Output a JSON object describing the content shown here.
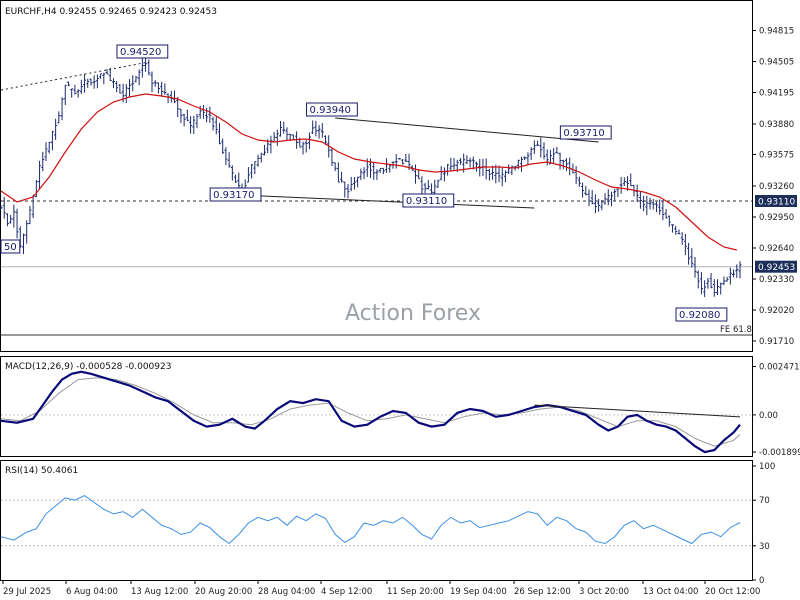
{
  "chart_data": [
    {
      "type": "candlestick",
      "title": "EURCHF,H4 0.92455 0.92465 0.92423 0.92453",
      "symbol": "EURCHF",
      "timeframe": "H4",
      "ohlc_header": {
        "open": 0.92455,
        "high": 0.92465,
        "low": 0.92423,
        "close": 0.92453
      },
      "price_axis_ticks": [
        "0.94815",
        "0.94505",
        "0.94195",
        "0.93880",
        "0.93575",
        "0.93260",
        "0.92950",
        "0.92640",
        "0.92330",
        "0.92020",
        "0.91710"
      ],
      "x_tick_labels": [
        "29 Jul 2025",
        "6 Aug 04:00",
        "13 Aug 12:00",
        "20 Aug 20:00",
        "28 Aug 04:00",
        "4 Sep 12:00",
        "11 Sep 20:00",
        "19 Sep 04:00",
        "26 Sep 12:00",
        "3 Oct 20:00",
        "13 Oct 04:00",
        "20 Oct 12:00"
      ],
      "ylim": [
        0.9164,
        0.9492
      ],
      "bar_color": "#1a2a6c",
      "ma_color": "#d01010",
      "price_path": [
        [
          0,
          0.9305
        ],
        [
          2,
          0.929
        ],
        [
          4,
          0.9298
        ],
        [
          6,
          0.9265
        ],
        [
          9,
          0.93
        ],
        [
          12,
          0.9345
        ],
        [
          15,
          0.937
        ],
        [
          18,
          0.9395
        ],
        [
          20,
          0.9428
        ],
        [
          23,
          0.9418
        ],
        [
          26,
          0.943
        ],
        [
          29,
          0.9432
        ],
        [
          32,
          0.944
        ],
        [
          35,
          0.9428
        ],
        [
          38,
          0.9418
        ],
        [
          41,
          0.943
        ],
        [
          43,
          0.9442
        ],
        [
          45,
          0.9448
        ],
        [
          47,
          0.943
        ],
        [
          50,
          0.942
        ],
        [
          53,
          0.9415
        ],
        [
          56,
          0.9398
        ],
        [
          59,
          0.9385
        ],
        [
          62,
          0.94
        ],
        [
          65,
          0.9395
        ],
        [
          67,
          0.938
        ],
        [
          70,
          0.9352
        ],
        [
          73,
          0.933
        ],
        [
          75,
          0.932
        ],
        [
          78,
          0.9345
        ],
        [
          81,
          0.9358
        ],
        [
          84,
          0.937
        ],
        [
          87,
          0.9382
        ],
        [
          90,
          0.9378
        ],
        [
          93,
          0.9365
        ],
        [
          95,
          0.937
        ],
        [
          97,
          0.9385
        ],
        [
          100,
          0.9378
        ],
        [
          102,
          0.936
        ],
        [
          105,
          0.9332
        ],
        [
          108,
          0.9322
        ],
        [
          111,
          0.9335
        ],
        [
          114,
          0.9345
        ],
        [
          117,
          0.934
        ],
        [
          120,
          0.9345
        ],
        [
          123,
          0.9352
        ],
        [
          126,
          0.935
        ],
        [
          129,
          0.9338
        ],
        [
          131,
          0.9325
        ],
        [
          134,
          0.9322
        ],
        [
          137,
          0.9338
        ],
        [
          140,
          0.9348
        ],
        [
          143,
          0.935
        ],
        [
          146,
          0.9352
        ],
        [
          149,
          0.9345
        ],
        [
          152,
          0.934
        ],
        [
          155,
          0.9335
        ],
        [
          158,
          0.9342
        ],
        [
          161,
          0.935
        ],
        [
          164,
          0.9358
        ],
        [
          167,
          0.9368
        ],
        [
          170,
          0.935
        ],
        [
          172,
          0.936
        ],
        [
          175,
          0.935
        ],
        [
          178,
          0.934
        ],
        [
          181,
          0.932
        ],
        [
          184,
          0.931
        ],
        [
          186,
          0.9305
        ],
        [
          189,
          0.9315
        ],
        [
          192,
          0.9325
        ],
        [
          195,
          0.933
        ],
        [
          197,
          0.932
        ],
        [
          200,
          0.9305
        ],
        [
          203,
          0.931
        ],
        [
          206,
          0.9298
        ],
        [
          209,
          0.9285
        ],
        [
          212,
          0.9272
        ],
        [
          214,
          0.9255
        ],
        [
          216,
          0.924
        ],
        [
          218,
          0.9222
        ],
        [
          220,
          0.9232
        ],
        [
          222,
          0.9218
        ],
        [
          224,
          0.9228
        ],
        [
          226,
          0.9235
        ],
        [
          228,
          0.924
        ],
        [
          230,
          0.9245
        ]
      ],
      "ma_path": [
        [
          0,
          0.9321
        ],
        [
          5,
          0.931
        ],
        [
          10,
          0.9315
        ],
        [
          15,
          0.9335
        ],
        [
          20,
          0.936
        ],
        [
          25,
          0.9383
        ],
        [
          30,
          0.94
        ],
        [
          35,
          0.941
        ],
        [
          40,
          0.9415
        ],
        [
          45,
          0.9418
        ],
        [
          50,
          0.9416
        ],
        [
          55,
          0.9413
        ],
        [
          60,
          0.9406
        ],
        [
          65,
          0.94
        ],
        [
          70,
          0.939
        ],
        [
          75,
          0.9378
        ],
        [
          80,
          0.9372
        ],
        [
          85,
          0.937
        ],
        [
          90,
          0.9372
        ],
        [
          95,
          0.9373
        ],
        [
          100,
          0.937
        ],
        [
          105,
          0.936
        ],
        [
          110,
          0.9353
        ],
        [
          115,
          0.935
        ],
        [
          120,
          0.9348
        ],
        [
          125,
          0.9346
        ],
        [
          130,
          0.9342
        ],
        [
          135,
          0.934
        ],
        [
          140,
          0.9341
        ],
        [
          145,
          0.9343
        ],
        [
          150,
          0.9345
        ],
        [
          155,
          0.9345
        ],
        [
          160,
          0.9344
        ],
        [
          165,
          0.9348
        ],
        [
          170,
          0.935
        ],
        [
          175,
          0.9346
        ],
        [
          180,
          0.934
        ],
        [
          185,
          0.9332
        ],
        [
          190,
          0.9325
        ],
        [
          195,
          0.9323
        ],
        [
          200,
          0.932
        ],
        [
          205,
          0.9315
        ],
        [
          210,
          0.9305
        ],
        [
          215,
          0.929
        ],
        [
          220,
          0.9275
        ],
        [
          225,
          0.9265
        ],
        [
          229,
          0.9262
        ]
      ],
      "annotations": [
        {
          "label": "0.94520",
          "x": 44,
          "y": 0.9452
        },
        {
          "label": "0.93940",
          "x": 103,
          "y": 0.9394
        },
        {
          "label": "0.93710",
          "x": 182,
          "y": 0.9371
        },
        {
          "label": "0.93170",
          "x": 73,
          "y": 0.9317
        },
        {
          "label": "0.93110",
          "x": 133,
          "y": 0.9311
        },
        {
          "label": "0.92080",
          "x": 218,
          "y": 0.9208
        },
        {
          "label": "50",
          "x": 0,
          "y": 0.9265
        }
      ],
      "horizontal_lines": [
        {
          "label": "0.93110",
          "y": 0.9311,
          "style": "dashed"
        },
        {
          "label": "0.92453",
          "y": 0.92453,
          "style": "solid"
        },
        {
          "label": "FE 61.8",
          "y": 0.9177,
          "style": "solid"
        }
      ],
      "trend_lines": [
        {
          "from": [
            0,
            0.9422
          ],
          "to": [
            46,
            0.945
          ],
          "style": "dotted"
        },
        {
          "from": [
            104,
            0.9394
          ],
          "to": [
            186,
            0.937
          ],
          "style": "solid"
        },
        {
          "from": [
            74,
            0.9317
          ],
          "to": [
            166,
            0.9304
          ],
          "style": "solid"
        }
      ],
      "watermark": "Action Forex"
    },
    {
      "type": "line",
      "title": "MACD(12,26,9) -0.000528 -0.000923",
      "params": "12,26,9",
      "main": -0.000528,
      "signal": -0.000923,
      "y_tick_labels": [
        "0.002471",
        "0.00",
        "-0.001899"
      ],
      "ylim": [
        -0.0021,
        0.0027
      ],
      "main_color": "#0a0a7a",
      "signal_color": "#9a9a9a",
      "main_path": [
        [
          0,
          -0.0003
        ],
        [
          5,
          -0.0004
        ],
        [
          10,
          -0.0002
        ],
        [
          13,
          0.0005
        ],
        [
          16,
          0.0012
        ],
        [
          19,
          0.0018
        ],
        [
          22,
          0.0021
        ],
        [
          25,
          0.0022
        ],
        [
          28,
          0.0021
        ],
        [
          32,
          0.0019
        ],
        [
          36,
          0.0017
        ],
        [
          40,
          0.0015
        ],
        [
          44,
          0.0012
        ],
        [
          48,
          0.0009
        ],
        [
          52,
          0.0007
        ],
        [
          56,
          0.0002
        ],
        [
          60,
          -0.0003
        ],
        [
          64,
          -0.0006
        ],
        [
          68,
          -0.0005
        ],
        [
          72,
          -0.0002
        ],
        [
          76,
          -0.0006
        ],
        [
          79,
          -0.0007
        ],
        [
          82,
          -0.0003
        ],
        [
          86,
          0.0003
        ],
        [
          90,
          0.0007
        ],
        [
          94,
          0.0006
        ],
        [
          98,
          0.0008
        ],
        [
          102,
          0.0007
        ],
        [
          106,
          -0.0003
        ],
        [
          110,
          -0.0006
        ],
        [
          114,
          -0.0005
        ],
        [
          118,
          -0.0001
        ],
        [
          122,
          0.0002
        ],
        [
          126,
          0.0001
        ],
        [
          130,
          -0.0004
        ],
        [
          134,
          -0.0006
        ],
        [
          138,
          -0.0005
        ],
        [
          142,
          0.0001
        ],
        [
          146,
          0.0003
        ],
        [
          150,
          0.0002
        ],
        [
          154,
          -0.0001
        ],
        [
          158,
          0.0
        ],
        [
          162,
          0.0002
        ],
        [
          166,
          0.0004
        ],
        [
          170,
          0.0005
        ],
        [
          174,
          0.0004
        ],
        [
          178,
          0.0002
        ],
        [
          182,
          0.0
        ],
        [
          186,
          -0.0005
        ],
        [
          189,
          -0.0008
        ],
        [
          192,
          -0.0006
        ],
        [
          195,
          -0.0001
        ],
        [
          198,
          0.0
        ],
        [
          201,
          -0.0003
        ],
        [
          204,
          -0.0005
        ],
        [
          207,
          -0.0006
        ],
        [
          210,
          -0.0008
        ],
        [
          213,
          -0.0012
        ],
        [
          216,
          -0.0016
        ],
        [
          219,
          -0.0019
        ],
        [
          222,
          -0.0018
        ],
        [
          225,
          -0.0013
        ],
        [
          228,
          -0.0009
        ],
        [
          230,
          -0.0005
        ]
      ],
      "signal_path": [
        [
          0,
          -0.0002
        ],
        [
          6,
          -0.0003
        ],
        [
          12,
          0.0002
        ],
        [
          18,
          0.0011
        ],
        [
          24,
          0.0018
        ],
        [
          30,
          0.0019
        ],
        [
          36,
          0.0018
        ],
        [
          42,
          0.0015
        ],
        [
          48,
          0.0011
        ],
        [
          54,
          0.0006
        ],
        [
          60,
          0.0
        ],
        [
          66,
          -0.0004
        ],
        [
          72,
          -0.0004
        ],
        [
          78,
          -0.0005
        ],
        [
          84,
          -0.0002
        ],
        [
          90,
          0.0003
        ],
        [
          96,
          0.0005
        ],
        [
          102,
          0.0006
        ],
        [
          108,
          0.0001
        ],
        [
          114,
          -0.0003
        ],
        [
          120,
          -0.0002
        ],
        [
          126,
          0.0
        ],
        [
          132,
          -0.0002
        ],
        [
          138,
          -0.0004
        ],
        [
          144,
          -0.0001
        ],
        [
          150,
          0.0001
        ],
        [
          156,
          0.0
        ],
        [
          162,
          0.0001
        ],
        [
          168,
          0.0003
        ],
        [
          174,
          0.0004
        ],
        [
          180,
          0.0002
        ],
        [
          186,
          -0.0002
        ],
        [
          192,
          -0.0006
        ],
        [
          198,
          -0.0003
        ],
        [
          204,
          -0.0003
        ],
        [
          210,
          -0.0006
        ],
        [
          216,
          -0.0012
        ],
        [
          222,
          -0.0016
        ],
        [
          228,
          -0.0013
        ],
        [
          230,
          -0.001
        ]
      ],
      "trend_line": {
        "from": [
          166,
          0.0005
        ],
        "to": [
          230,
          -0.0001
        ]
      }
    },
    {
      "type": "line",
      "title": "RSI(14) 50.4061",
      "period": 14,
      "value": 50.4061,
      "y_tick_labels": [
        "100",
        "70",
        "30",
        "0"
      ],
      "ylim": [
        0,
        100
      ],
      "levels": [
        70,
        30
      ],
      "line_color": "#3a8ee6",
      "rsi_path": [
        [
          0,
          38
        ],
        [
          4,
          35
        ],
        [
          8,
          42
        ],
        [
          11,
          45
        ],
        [
          14,
          58
        ],
        [
          17,
          65
        ],
        [
          20,
          72
        ],
        [
          23,
          70
        ],
        [
          26,
          74
        ],
        [
          29,
          68
        ],
        [
          32,
          62
        ],
        [
          35,
          58
        ],
        [
          38,
          60
        ],
        [
          41,
          55
        ],
        [
          44,
          62
        ],
        [
          47,
          55
        ],
        [
          50,
          48
        ],
        [
          53,
          45
        ],
        [
          56,
          40
        ],
        [
          59,
          42
        ],
        [
          62,
          50
        ],
        [
          65,
          46
        ],
        [
          68,
          38
        ],
        [
          71,
          32
        ],
        [
          74,
          40
        ],
        [
          77,
          50
        ],
        [
          80,
          55
        ],
        [
          83,
          52
        ],
        [
          86,
          55
        ],
        [
          89,
          48
        ],
        [
          92,
          56
        ],
        [
          95,
          52
        ],
        [
          98,
          58
        ],
        [
          101,
          54
        ],
        [
          104,
          40
        ],
        [
          107,
          33
        ],
        [
          110,
          38
        ],
        [
          113,
          50
        ],
        [
          116,
          48
        ],
        [
          119,
          52
        ],
        [
          122,
          50
        ],
        [
          125,
          55
        ],
        [
          128,
          48
        ],
        [
          131,
          40
        ],
        [
          134,
          36
        ],
        [
          137,
          48
        ],
        [
          140,
          55
        ],
        [
          143,
          50
        ],
        [
          146,
          52
        ],
        [
          149,
          46
        ],
        [
          152,
          48
        ],
        [
          155,
          50
        ],
        [
          158,
          52
        ],
        [
          161,
          56
        ],
        [
          164,
          60
        ],
        [
          167,
          58
        ],
        [
          170,
          48
        ],
        [
          173,
          55
        ],
        [
          176,
          52
        ],
        [
          179,
          45
        ],
        [
          182,
          42
        ],
        [
          185,
          34
        ],
        [
          188,
          32
        ],
        [
          191,
          38
        ],
        [
          194,
          48
        ],
        [
          197,
          52
        ],
        [
          200,
          45
        ],
        [
          203,
          48
        ],
        [
          206,
          44
        ],
        [
          209,
          40
        ],
        [
          212,
          36
        ],
        [
          215,
          32
        ],
        [
          218,
          40
        ],
        [
          221,
          42
        ],
        [
          224,
          38
        ],
        [
          227,
          46
        ],
        [
          230,
          50.4
        ]
      ]
    }
  ]
}
